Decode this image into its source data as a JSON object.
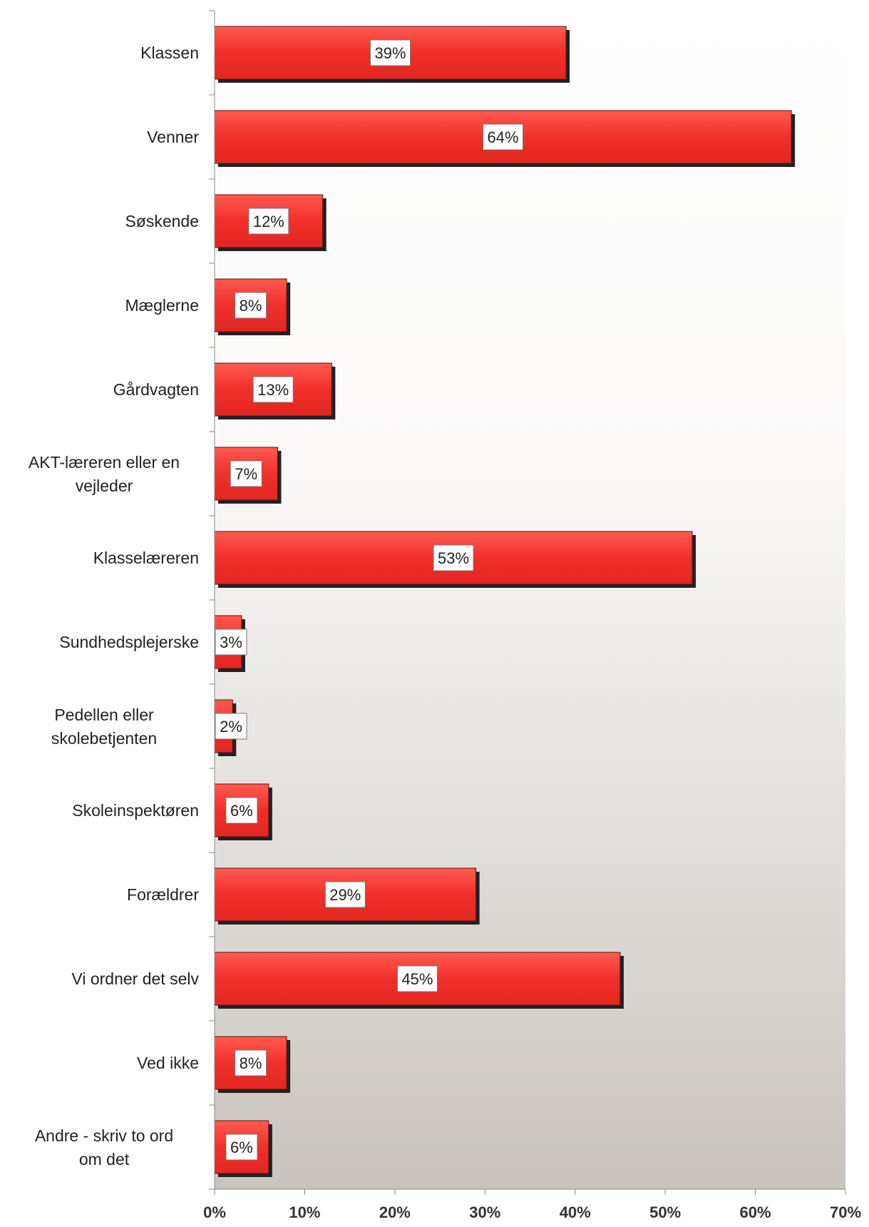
{
  "chart_data": {
    "type": "bar",
    "orientation": "horizontal",
    "categories": [
      "Klassen",
      "Venner",
      "Søskende",
      "Mæglerne",
      "Gårdvagten",
      "AKT-læreren eller en vejleder",
      "Klasselæreren",
      "Sundhedsplejerske",
      "Pedellen eller skolebetjenten",
      "Skoleinspektøren",
      "Forældrer",
      "Vi ordner det selv",
      "Ved ikke",
      "Andre - skriv to ord om det"
    ],
    "values": [
      39,
      64,
      12,
      8,
      13,
      7,
      53,
      3,
      2,
      6,
      29,
      45,
      8,
      6
    ],
    "data_labels": [
      "39%",
      "64%",
      "12%",
      "8%",
      "13%",
      "7%",
      "53%",
      "3%",
      "2%",
      "6%",
      "29%",
      "45%",
      "8%",
      "6%"
    ],
    "xlim": [
      0,
      70
    ],
    "x_ticks": [
      "0%",
      "10%",
      "20%",
      "30%",
      "40%",
      "50%",
      "60%",
      "70%"
    ],
    "title": "",
    "xlabel": "",
    "ylabel": "",
    "grid": false,
    "legend": "none",
    "bar_color": "#ee2f2a",
    "bar_color_light": "#ff5a50",
    "shadow_color": "#222222",
    "background_gradient": [
      "#ffffff",
      "#c9c4bf"
    ]
  }
}
